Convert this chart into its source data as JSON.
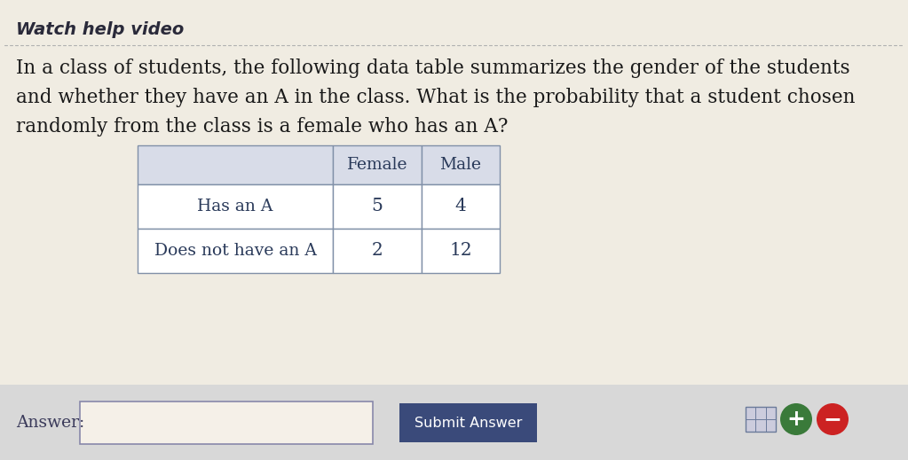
{
  "title": "Watch help video",
  "question_line1": "In a class of students, the following data table summarizes the gender of the students",
  "question_line2": "and whether they have an A in the class. What is the probability that a student chosen",
  "question_line3": "randomly from the class is a female who has an A?",
  "table_headers": [
    "",
    "Female",
    "Male"
  ],
  "table_row1": [
    "Has an A",
    "5",
    "4"
  ],
  "table_row2": [
    "Does not have an A",
    "2",
    "12"
  ],
  "answer_label": "Answer:",
  "submit_label": "Submit Answer",
  "bg_color": "#f0ece2",
  "table_header_bg": "#d8dce8",
  "table_body_bg": "#ffffff",
  "table_border_color": "#8090a8",
  "title_color": "#2a2a3a",
  "question_color": "#1a1a1a",
  "table_text_color": "#2a3a5a",
  "answer_bar_bg": "#d8d8d8",
  "submit_btn_color": "#3a4a7a",
  "submit_text_color": "#ffffff",
  "dotted_line_color": "#b0b0b0",
  "plus_btn_color": "#3a7a3a",
  "minus_btn_color": "#cc2222",
  "icon_btn_color": "#5a6a8a"
}
